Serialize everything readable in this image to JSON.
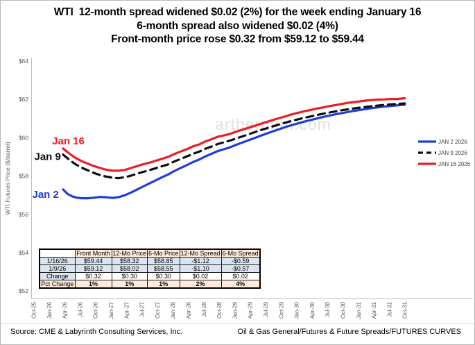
{
  "title": {
    "line1": "WTI  12-month spread widened $0.02 (2%) for the week ending January 16",
    "line2": "6-month spread also widened $0.02 (4%)",
    "line3": "Front-month price rose $0.32 from $59.12 to $59.44"
  },
  "chart_data": {
    "type": "line",
    "title": "",
    "xlabel": "",
    "ylabel": "WTI Futures  Price ($/barrel)",
    "ylim": [
      52,
      64
    ],
    "yticks": [
      52,
      54,
      56,
      58,
      60,
      62,
      64
    ],
    "ytick_prefix": "$",
    "grid": false,
    "legend_position": "right",
    "watermark": "artberman.com",
    "x_categories": [
      "Oct-25",
      "Jan-26",
      "Apr-26",
      "Jul-26",
      "Oct-26",
      "Jan-27",
      "Apr-27",
      "Jul-27",
      "Oct-27",
      "Jan-28",
      "Apr-28",
      "Jul-28",
      "Oct-28",
      "Jan-29",
      "Apr-29",
      "Jul-29",
      "Oct-29",
      "Jan-30",
      "Apr-30",
      "Jul-30",
      "Oct-30",
      "Jan-31",
      "Apr-31",
      "Jul-31",
      "Oct-31"
    ],
    "x_unit": "quarters since Oct-25",
    "series": [
      {
        "name": "JAN 2 2026",
        "annotation": "Jan 2",
        "color": "#1e3cdc",
        "dash": "solid",
        "points": [
          [
            1.9,
            57.3
          ],
          [
            2.2,
            57.06
          ],
          [
            2.5,
            56.94
          ],
          [
            2.8,
            56.87
          ],
          [
            3.1,
            56.84
          ],
          [
            3.5,
            56.84
          ],
          [
            3.9,
            56.87
          ],
          [
            4.3,
            56.91
          ],
          [
            4.7,
            56.89
          ],
          [
            5.1,
            56.86
          ],
          [
            5.5,
            56.9
          ],
          [
            5.9,
            57.0
          ],
          [
            6.3,
            57.14
          ],
          [
            6.7,
            57.3
          ],
          [
            7.1,
            57.46
          ],
          [
            7.5,
            57.62
          ],
          [
            7.9,
            57.78
          ],
          [
            8.3,
            57.94
          ],
          [
            8.7,
            58.08
          ],
          [
            9.1,
            58.26
          ],
          [
            9.5,
            58.42
          ],
          [
            9.9,
            58.57
          ],
          [
            10.3,
            58.73
          ],
          [
            10.7,
            58.86
          ],
          [
            11.1,
            59.02
          ],
          [
            11.5,
            59.16
          ],
          [
            11.9,
            59.3
          ],
          [
            12.3,
            59.4
          ],
          [
            12.7,
            59.5
          ],
          [
            13.1,
            59.63
          ],
          [
            13.5,
            59.75
          ],
          [
            13.9,
            59.87
          ],
          [
            14.3,
            59.99
          ],
          [
            14.7,
            60.11
          ],
          [
            15.1,
            60.23
          ],
          [
            15.5,
            60.34
          ],
          [
            15.9,
            60.45
          ],
          [
            16.3,
            60.56
          ],
          [
            16.7,
            60.66
          ],
          [
            17.1,
            60.75
          ],
          [
            17.5,
            60.84
          ],
          [
            17.9,
            60.92
          ],
          [
            18.3,
            61.0
          ],
          [
            18.7,
            61.08
          ],
          [
            19.1,
            61.15
          ],
          [
            19.5,
            61.22
          ],
          [
            19.9,
            61.28
          ],
          [
            20.3,
            61.34
          ],
          [
            20.7,
            61.4
          ],
          [
            21.1,
            61.45
          ],
          [
            21.5,
            61.5
          ],
          [
            21.9,
            61.55
          ],
          [
            22.3,
            61.59
          ],
          [
            22.7,
            61.63
          ],
          [
            23.1,
            61.66
          ],
          [
            23.5,
            61.69
          ],
          [
            24,
            61.72
          ]
        ]
      },
      {
        "name": "JAN 9 2026",
        "annotation": "Jan 9",
        "color": "#0d0d0d",
        "dash": "dashed",
        "points": [
          [
            1.9,
            59.12
          ],
          [
            2.3,
            58.85
          ],
          [
            2.7,
            58.62
          ],
          [
            3.1,
            58.44
          ],
          [
            3.5,
            58.3
          ],
          [
            3.9,
            58.16
          ],
          [
            4.3,
            58.05
          ],
          [
            4.7,
            57.97
          ],
          [
            5.1,
            57.91
          ],
          [
            5.5,
            57.89
          ],
          [
            5.9,
            57.94
          ],
          [
            6.3,
            58.02
          ],
          [
            6.7,
            58.12
          ],
          [
            7.1,
            58.22
          ],
          [
            7.5,
            58.31
          ],
          [
            7.9,
            58.41
          ],
          [
            8.3,
            58.51
          ],
          [
            8.7,
            58.61
          ],
          [
            9.1,
            58.76
          ],
          [
            9.5,
            58.89
          ],
          [
            9.9,
            59.02
          ],
          [
            10.3,
            59.16
          ],
          [
            10.7,
            59.27
          ],
          [
            11.1,
            59.42
          ],
          [
            11.5,
            59.54
          ],
          [
            11.9,
            59.67
          ],
          [
            12.3,
            59.76
          ],
          [
            12.7,
            59.85
          ],
          [
            13.1,
            59.96
          ],
          [
            13.5,
            60.07
          ],
          [
            13.9,
            60.18
          ],
          [
            14.3,
            60.29
          ],
          [
            14.7,
            60.4
          ],
          [
            15.1,
            60.5
          ],
          [
            15.5,
            60.6
          ],
          [
            15.9,
            60.7
          ],
          [
            16.3,
            60.79
          ],
          [
            16.7,
            60.88
          ],
          [
            17.1,
            60.96
          ],
          [
            17.5,
            61.04
          ],
          [
            17.9,
            61.11
          ],
          [
            18.3,
            61.18
          ],
          [
            18.7,
            61.25
          ],
          [
            19.1,
            61.31
          ],
          [
            19.5,
            61.37
          ],
          [
            19.9,
            61.43
          ],
          [
            20.3,
            61.48
          ],
          [
            20.7,
            61.53
          ],
          [
            21.1,
            61.57
          ],
          [
            21.5,
            61.61
          ],
          [
            21.9,
            61.65
          ],
          [
            22.3,
            61.68
          ],
          [
            22.7,
            61.71
          ],
          [
            23.1,
            61.74
          ],
          [
            23.5,
            61.76
          ],
          [
            24,
            61.79
          ]
        ]
      },
      {
        "name": "JAN 16 2026",
        "annotation": "Jan 16",
        "color": "#ed1c24",
        "dash": "solid",
        "points": [
          [
            1.9,
            59.44
          ],
          [
            2.3,
            59.18
          ],
          [
            2.7,
            58.95
          ],
          [
            3.1,
            58.78
          ],
          [
            3.5,
            58.65
          ],
          [
            3.9,
            58.52
          ],
          [
            4.3,
            58.42
          ],
          [
            4.7,
            58.33
          ],
          [
            5.1,
            58.28
          ],
          [
            5.5,
            58.28
          ],
          [
            5.9,
            58.32
          ],
          [
            6.3,
            58.42
          ],
          [
            6.7,
            58.52
          ],
          [
            7.1,
            58.62
          ],
          [
            7.5,
            58.7
          ],
          [
            7.9,
            58.8
          ],
          [
            8.3,
            58.9
          ],
          [
            8.7,
            59.0
          ],
          [
            9.1,
            59.15
          ],
          [
            9.5,
            59.28
          ],
          [
            9.9,
            59.4
          ],
          [
            10.3,
            59.55
          ],
          [
            10.7,
            59.65
          ],
          [
            11.1,
            59.8
          ],
          [
            11.5,
            59.92
          ],
          [
            11.9,
            60.05
          ],
          [
            12.3,
            60.12
          ],
          [
            12.7,
            60.2
          ],
          [
            13.1,
            60.32
          ],
          [
            13.5,
            60.42
          ],
          [
            13.9,
            60.52
          ],
          [
            14.3,
            60.62
          ],
          [
            14.7,
            60.73
          ],
          [
            15.1,
            60.83
          ],
          [
            15.5,
            60.93
          ],
          [
            15.9,
            61.03
          ],
          [
            16.3,
            61.12
          ],
          [
            16.7,
            61.22
          ],
          [
            17.1,
            61.3
          ],
          [
            17.5,
            61.38
          ],
          [
            17.9,
            61.45
          ],
          [
            18.3,
            61.52
          ],
          [
            18.7,
            61.58
          ],
          [
            19.1,
            61.65
          ],
          [
            19.5,
            61.7
          ],
          [
            19.9,
            61.76
          ],
          [
            20.3,
            61.82
          ],
          [
            20.7,
            61.86
          ],
          [
            21.1,
            61.9
          ],
          [
            21.5,
            61.94
          ],
          [
            21.9,
            61.97
          ],
          [
            22.3,
            61.99
          ],
          [
            22.7,
            62.0
          ],
          [
            23.1,
            62.02
          ],
          [
            23.5,
            62.02
          ],
          [
            24,
            62.06
          ]
        ]
      }
    ]
  },
  "table": {
    "col_headers": [
      "",
      "Front Month",
      "12-Mo Price",
      "6-Mo Price",
      "12-Mo Spread",
      "6-Mo Spread"
    ],
    "rows": [
      {
        "label": "1/16/26",
        "values": [
          "$59.44",
          "$58.32",
          "$58.85",
          "-$1.12",
          "-$0.59"
        ],
        "style": "blue"
      },
      {
        "label": "1/9/26",
        "values": [
          "$59.12",
          "$58.02",
          "$58.55",
          "-$1.10",
          "-$0.57"
        ],
        "style": "blue"
      },
      {
        "label": "Change",
        "values": [
          "$0.32",
          "$0.30",
          "$0.30",
          "$0.02",
          "$0.02"
        ],
        "style": "blue-white"
      },
      {
        "label": "Pct Change",
        "values": [
          "1%",
          "1%",
          "1%",
          "2%",
          "4%"
        ],
        "style": "tan-bold"
      }
    ]
  },
  "footer": {
    "left": "Source: CME & Labyrinth Consulting Services, Inc.",
    "right": "Oil & Gas General/Futures & Future Spreads/FUTURES CURVES"
  },
  "colors": {
    "jan2_blue": "#1e3cdc",
    "jan9_black": "#0d0d0d",
    "jan16_red": "#ed1c24",
    "table_blue": "#dbe5f1",
    "table_tan": "#fdeada",
    "axis_gray": "#595959",
    "axis_line_gray": "#bfbfbf",
    "watermark_gray": "#c9c9c9"
  }
}
